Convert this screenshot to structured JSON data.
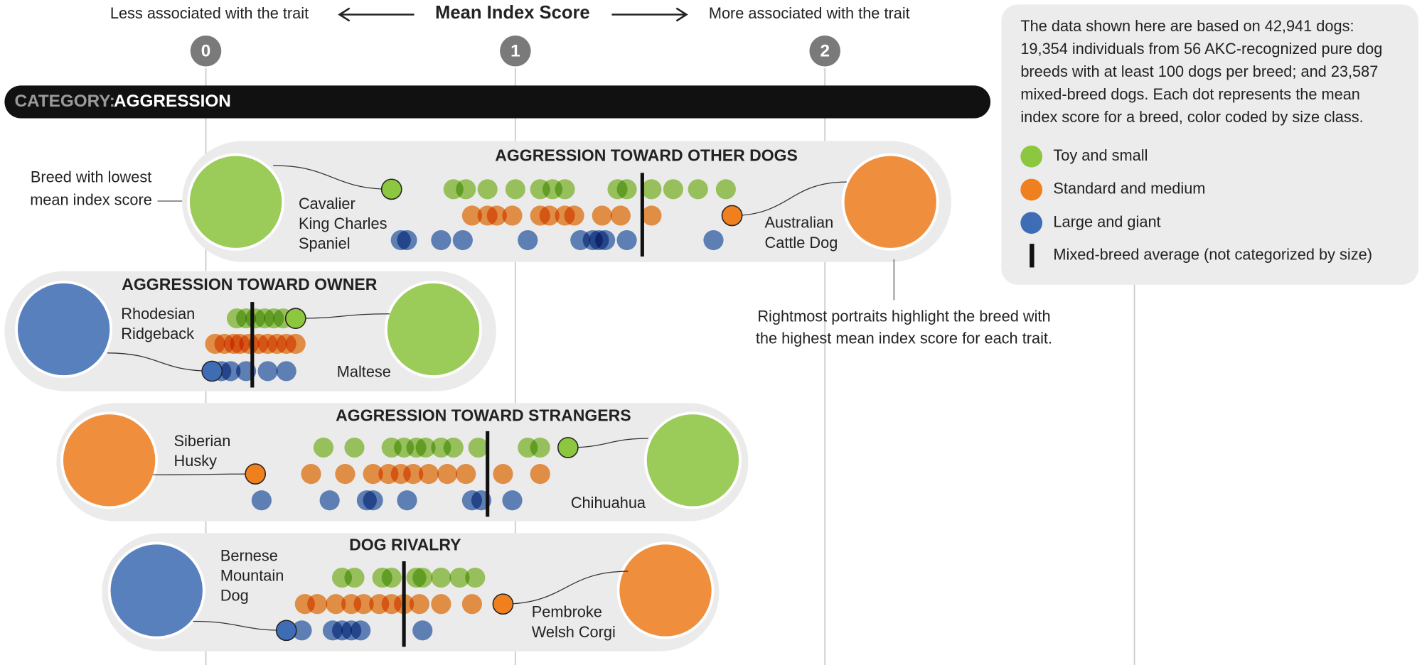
{
  "chart_data": {
    "type": "dotplot",
    "title": "Mean Index Score",
    "left_label": "Less associated with the trait",
    "right_label": "More associated with the trait",
    "xlim": [
      -0.665,
      3.929
    ],
    "xticks": [
      0,
      1,
      2
    ],
    "grid_lines": [
      0,
      1,
      2,
      3
    ],
    "category_prefix": "CATEGORY:",
    "category": "AGGRESSION",
    "note": [
      "The data shown here are based on 42,941 dogs:",
      "19,354 individuals from 56 AKC-recognized pure dog",
      "breeds with at least 100 dogs per breed; and 23,587",
      "mixed-breed dogs. Each dot represents the mean",
      "index score for a breed, color coded by size class."
    ],
    "series": [
      {
        "name": "Toy and small",
        "color": "#8dc63f"
      },
      {
        "name": "Standard and medium",
        "color": "#f07f1e"
      },
      {
        "name": "Large and giant",
        "color": "#3e6db5"
      }
    ],
    "mixed_average_label": "Mixed-breed average (not categorized by size)",
    "annotation_lowest": [
      "Breed with lowest",
      "mean index score"
    ],
    "annotation_highest": [
      "Rightmost portraits highlight the breed with",
      "the highest mean index score for each trait."
    ],
    "panels": [
      {
        "title": "AGGRESSION TOWARD OTHER DOGS",
        "mixed_average": 1.41,
        "lowest": {
          "name": [
            "Cavalier",
            "King Charles",
            "Spaniel"
          ],
          "series": 0,
          "value": 0.6
        },
        "highest": {
          "name": [
            "Australian",
            "Cattle Dog"
          ],
          "series": 1,
          "value": 1.7
        },
        "values": [
          [
            0.8,
            0.84,
            0.91,
            1.0,
            1.08,
            1.12,
            1.16,
            1.33,
            1.36,
            1.44,
            1.51,
            1.59,
            1.68
          ],
          [
            0.86,
            0.91,
            0.94,
            0.99,
            1.08,
            1.11,
            1.16,
            1.19,
            1.28,
            1.34,
            1.44
          ],
          [
            0.63,
            0.65,
            0.76,
            0.83,
            1.04,
            1.21,
            1.25,
            1.27,
            1.29,
            1.36,
            1.64
          ]
        ]
      },
      {
        "title": "AGGRESSION TOWARD OWNER",
        "mixed_average": 0.15,
        "lowest": {
          "name": [
            "Rhodesian",
            "Ridgeback"
          ],
          "series": 2,
          "value": 0.02
        },
        "highest": {
          "name": [
            "Maltese"
          ],
          "series": 0,
          "value": 0.29
        },
        "values": [
          [
            0.1,
            0.13,
            0.16,
            0.19,
            0.22,
            0.25
          ],
          [
            0.03,
            0.06,
            0.09,
            0.11,
            0.14,
            0.17,
            0.2,
            0.23,
            0.26,
            0.29
          ],
          [
            0.05,
            0.08,
            0.13,
            0.2,
            0.26
          ]
        ]
      },
      {
        "title": "AGGRESSION TOWARD STRANGERS",
        "mixed_average": 0.91,
        "lowest": {
          "name": [
            "Siberian",
            "Husky"
          ],
          "series": 1,
          "value": 0.16
        },
        "highest": {
          "name": [
            "Chihuahua"
          ],
          "series": 0,
          "value": 1.17
        },
        "values": [
          [
            0.38,
            0.48,
            0.6,
            0.64,
            0.68,
            0.71,
            0.76,
            0.8,
            0.88,
            1.04,
            1.08
          ],
          [
            0.34,
            0.45,
            0.54,
            0.59,
            0.63,
            0.67,
            0.72,
            0.78,
            0.84,
            0.96,
            1.08
          ],
          [
            0.18,
            0.4,
            0.52,
            0.54,
            0.65,
            0.86,
            0.89,
            0.99
          ]
        ]
      },
      {
        "title": "DOG RIVALRY",
        "mixed_average": 0.64,
        "lowest": {
          "name": [
            "Bernese",
            "Mountain",
            "Dog"
          ],
          "series": 2,
          "value": 0.26
        },
        "highest": {
          "name": [
            "Pembroke",
            "Welsh Corgi"
          ],
          "series": 1,
          "value": 0.96
        },
        "values": [
          [
            0.44,
            0.48,
            0.57,
            0.6,
            0.68,
            0.7,
            0.76,
            0.82,
            0.87
          ],
          [
            0.32,
            0.36,
            0.42,
            0.47,
            0.51,
            0.56,
            0.6,
            0.64,
            0.69,
            0.76,
            0.86
          ],
          [
            0.31,
            0.41,
            0.44,
            0.47,
            0.5,
            0.7
          ]
        ]
      }
    ]
  }
}
